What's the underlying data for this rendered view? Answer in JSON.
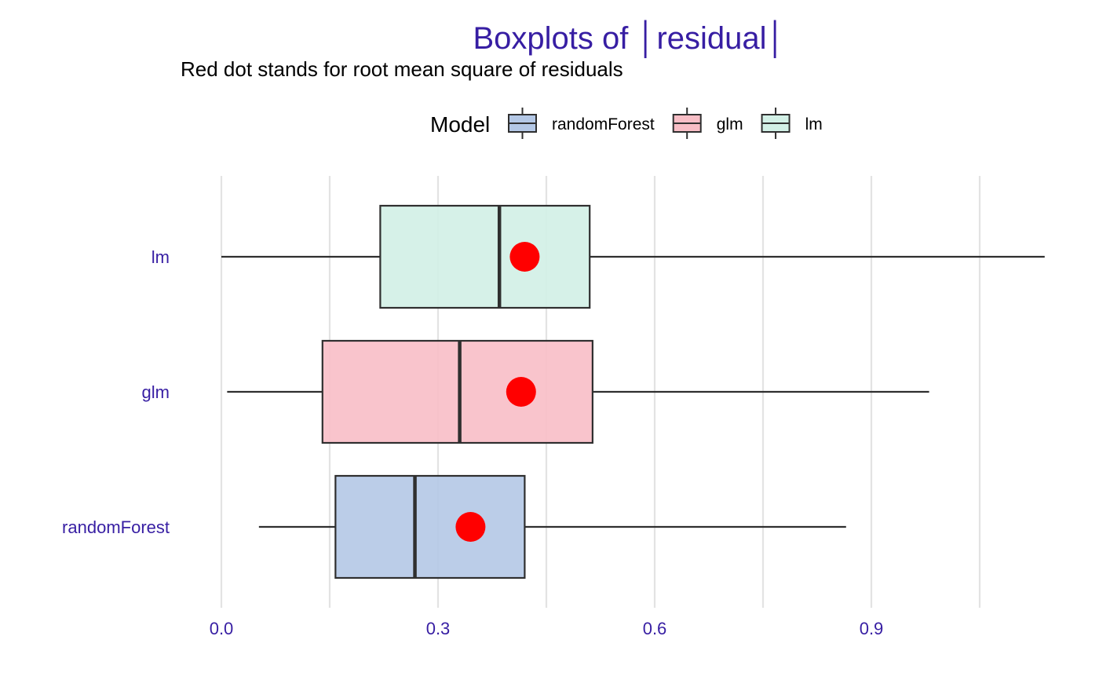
{
  "chart_data": {
    "type": "boxplot",
    "title": "Boxplots of │residual│",
    "subtitle": "Red dot stands for root mean square of residuals",
    "legend": {
      "title": "Model",
      "position": "top",
      "entries": [
        "randomForest",
        "glm",
        "lm"
      ]
    },
    "orientation": "horizontal",
    "categories": [
      "lm",
      "glm",
      "randomForest"
    ],
    "xlim": [
      0.0,
      1.14
    ],
    "x_ticks": [
      0.0,
      0.3,
      0.6,
      0.9
    ],
    "x_tick_labels": [
      "0.0",
      "0.3",
      "0.6",
      "0.9"
    ],
    "minor_gridlines": [
      0.15,
      0.45,
      0.75,
      1.05
    ],
    "grid": "vertical",
    "series": [
      {
        "name": "lm",
        "min": 0.0,
        "q1": 0.22,
        "median": 0.385,
        "q3": 0.51,
        "max": 1.14,
        "rms": 0.42,
        "fill": "#d2f0e6"
      },
      {
        "name": "glm",
        "min": 0.008,
        "q1": 0.14,
        "median": 0.33,
        "q3": 0.514,
        "max": 0.98,
        "rms": 0.415,
        "fill": "#f8bec6"
      },
      {
        "name": "randomForest",
        "min": 0.052,
        "q1": 0.158,
        "median": 0.268,
        "q3": 0.42,
        "max": 0.865,
        "rms": 0.345,
        "fill": "#b4c8e6"
      }
    ],
    "colors": {
      "title": "#371ea3",
      "axis_labels": "#371ea3",
      "rms_dot": "#ff0000",
      "box_stroke": "#2f2f2f",
      "grid": "#e3e3e3"
    }
  }
}
